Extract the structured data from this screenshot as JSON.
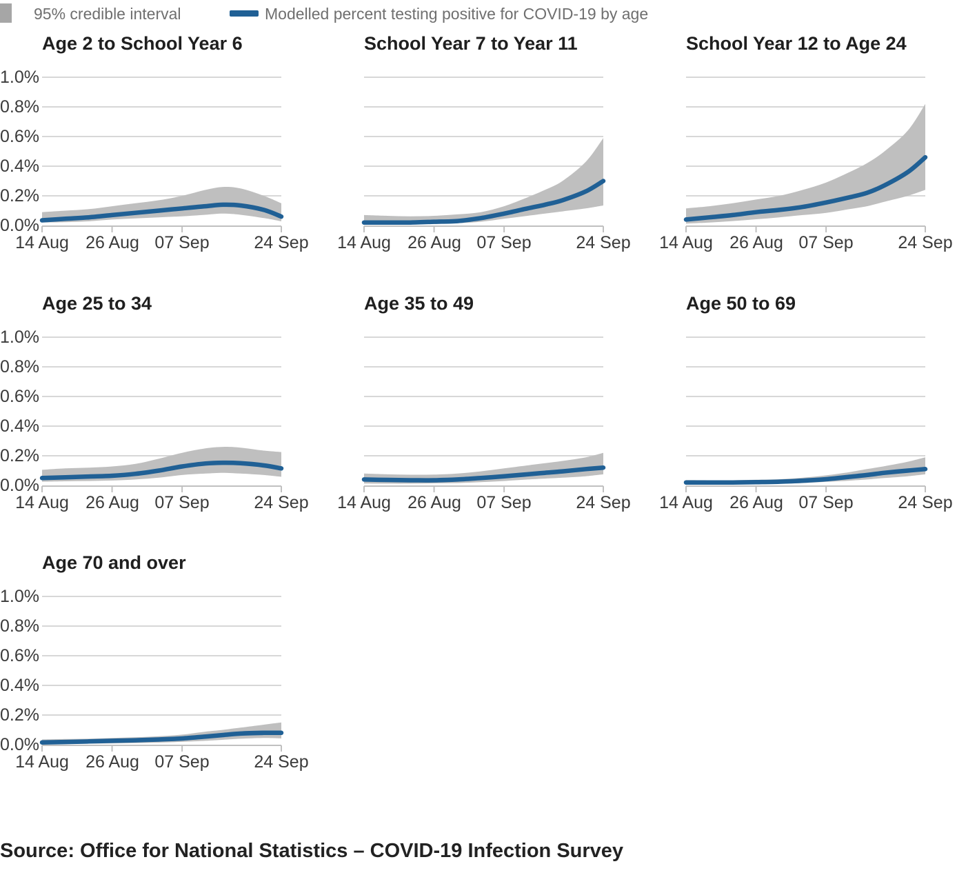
{
  "legend": {
    "band_label": "95% credible interval",
    "line_label": "Modelled percent testing positive for COVID-19 by age"
  },
  "source_text": "Source: Office for National Statistics – COVID-19 Infection Survey",
  "colors": {
    "line": "#206095",
    "band": "#bfbfbf",
    "legend_swatch": "#a6a6a6",
    "grid": "#d7d7d7",
    "axis": "#c0c0c0",
    "legend_text": "#6f6f6f",
    "title_text": "#1f1f1f",
    "tick_text": "#3b3b3b"
  },
  "chart_data": {
    "type": "line",
    "layout": "small multiples, 3 columns, 7 panels",
    "grid": true,
    "unit": "percent testing positive",
    "ylim": [
      0,
      1.0
    ],
    "y_ticks": [
      "1.0%",
      "0.8%",
      "0.6%",
      "0.4%",
      "0.2%",
      "0.0%"
    ],
    "y_tick_values": [
      1.0,
      0.8,
      0.6,
      0.4,
      0.2,
      0.0
    ],
    "x_range_days": [
      0,
      41
    ],
    "x_ticks": [
      {
        "label": "14 Aug",
        "day": 0
      },
      {
        "label": "26 Aug",
        "day": 12
      },
      {
        "label": "07 Sep",
        "day": 24
      },
      {
        "label": "24 Sep",
        "day": 41
      }
    ],
    "sample_days": [
      0,
      4,
      8,
      12,
      16,
      20,
      24,
      28,
      31,
      34,
      38,
      41
    ],
    "panels": [
      {
        "title": "Age 2 to School Year 6",
        "line": [
          0.035,
          0.045,
          0.055,
          0.07,
          0.085,
          0.1,
          0.115,
          0.13,
          0.14,
          0.135,
          0.105,
          0.06
        ],
        "ci_upper": [
          0.09,
          0.1,
          0.11,
          0.13,
          0.15,
          0.17,
          0.2,
          0.24,
          0.26,
          0.25,
          0.2,
          0.15
        ],
        "ci_lower": [
          0.02,
          0.022,
          0.028,
          0.04,
          0.048,
          0.055,
          0.062,
          0.072,
          0.08,
          0.072,
          0.05,
          0.028
        ]
      },
      {
        "title": "School Year 7 to Year 11",
        "line": [
          0.02,
          0.02,
          0.02,
          0.025,
          0.03,
          0.05,
          0.08,
          0.115,
          0.14,
          0.17,
          0.23,
          0.3
        ],
        "ci_upper": [
          0.07,
          0.065,
          0.062,
          0.065,
          0.075,
          0.09,
          0.13,
          0.19,
          0.24,
          0.3,
          0.43,
          0.59
        ],
        "ci_lower": [
          0.008,
          0.008,
          0.008,
          0.01,
          0.015,
          0.025,
          0.045,
          0.065,
          0.08,
          0.095,
          0.115,
          0.135
        ]
      },
      {
        "title": "School Year 12 to Age 24",
        "line": [
          0.04,
          0.055,
          0.07,
          0.09,
          0.105,
          0.125,
          0.155,
          0.19,
          0.22,
          0.27,
          0.36,
          0.46
        ],
        "ci_upper": [
          0.115,
          0.13,
          0.15,
          0.175,
          0.2,
          0.24,
          0.29,
          0.36,
          0.42,
          0.5,
          0.64,
          0.82
        ],
        "ci_lower": [
          0.012,
          0.02,
          0.03,
          0.042,
          0.055,
          0.07,
          0.085,
          0.11,
          0.13,
          0.16,
          0.2,
          0.24
        ]
      },
      {
        "title": "Age 25 to 34",
        "line": [
          0.05,
          0.055,
          0.06,
          0.065,
          0.078,
          0.1,
          0.128,
          0.148,
          0.153,
          0.15,
          0.135,
          0.115
        ],
        "ci_upper": [
          0.105,
          0.115,
          0.12,
          0.128,
          0.145,
          0.18,
          0.22,
          0.25,
          0.26,
          0.255,
          0.235,
          0.225
        ],
        "ci_lower": [
          0.025,
          0.028,
          0.03,
          0.033,
          0.04,
          0.052,
          0.07,
          0.08,
          0.085,
          0.08,
          0.07,
          0.058
        ]
      },
      {
        "title": "Age 35 to 49",
        "line": [
          0.04,
          0.037,
          0.035,
          0.035,
          0.04,
          0.05,
          0.062,
          0.075,
          0.085,
          0.095,
          0.11,
          0.12
        ],
        "ci_upper": [
          0.08,
          0.075,
          0.072,
          0.073,
          0.08,
          0.095,
          0.115,
          0.135,
          0.15,
          0.165,
          0.19,
          0.22
        ],
        "ci_lower": [
          0.013,
          0.012,
          0.012,
          0.014,
          0.016,
          0.022,
          0.03,
          0.04,
          0.046,
          0.052,
          0.062,
          0.075
        ]
      },
      {
        "title": "Age 50 to 69",
        "line": [
          0.02,
          0.02,
          0.02,
          0.022,
          0.025,
          0.032,
          0.042,
          0.058,
          0.07,
          0.085,
          0.1,
          0.11
        ],
        "ci_upper": [
          0.036,
          0.035,
          0.035,
          0.038,
          0.042,
          0.052,
          0.068,
          0.09,
          0.11,
          0.13,
          0.16,
          0.19
        ],
        "ci_lower": [
          0.008,
          0.008,
          0.008,
          0.01,
          0.012,
          0.016,
          0.024,
          0.032,
          0.04,
          0.05,
          0.062,
          0.075
        ]
      },
      {
        "title": "Age 70 and over",
        "line": [
          0.015,
          0.018,
          0.022,
          0.026,
          0.03,
          0.035,
          0.042,
          0.055,
          0.065,
          0.075,
          0.08,
          0.08
        ],
        "ci_upper": [
          0.035,
          0.038,
          0.04,
          0.045,
          0.05,
          0.057,
          0.068,
          0.088,
          0.1,
          0.115,
          0.135,
          0.15
        ],
        "ci_lower": [
          0.005,
          0.006,
          0.007,
          0.009,
          0.011,
          0.014,
          0.019,
          0.026,
          0.033,
          0.04,
          0.045,
          0.042
        ]
      }
    ]
  }
}
